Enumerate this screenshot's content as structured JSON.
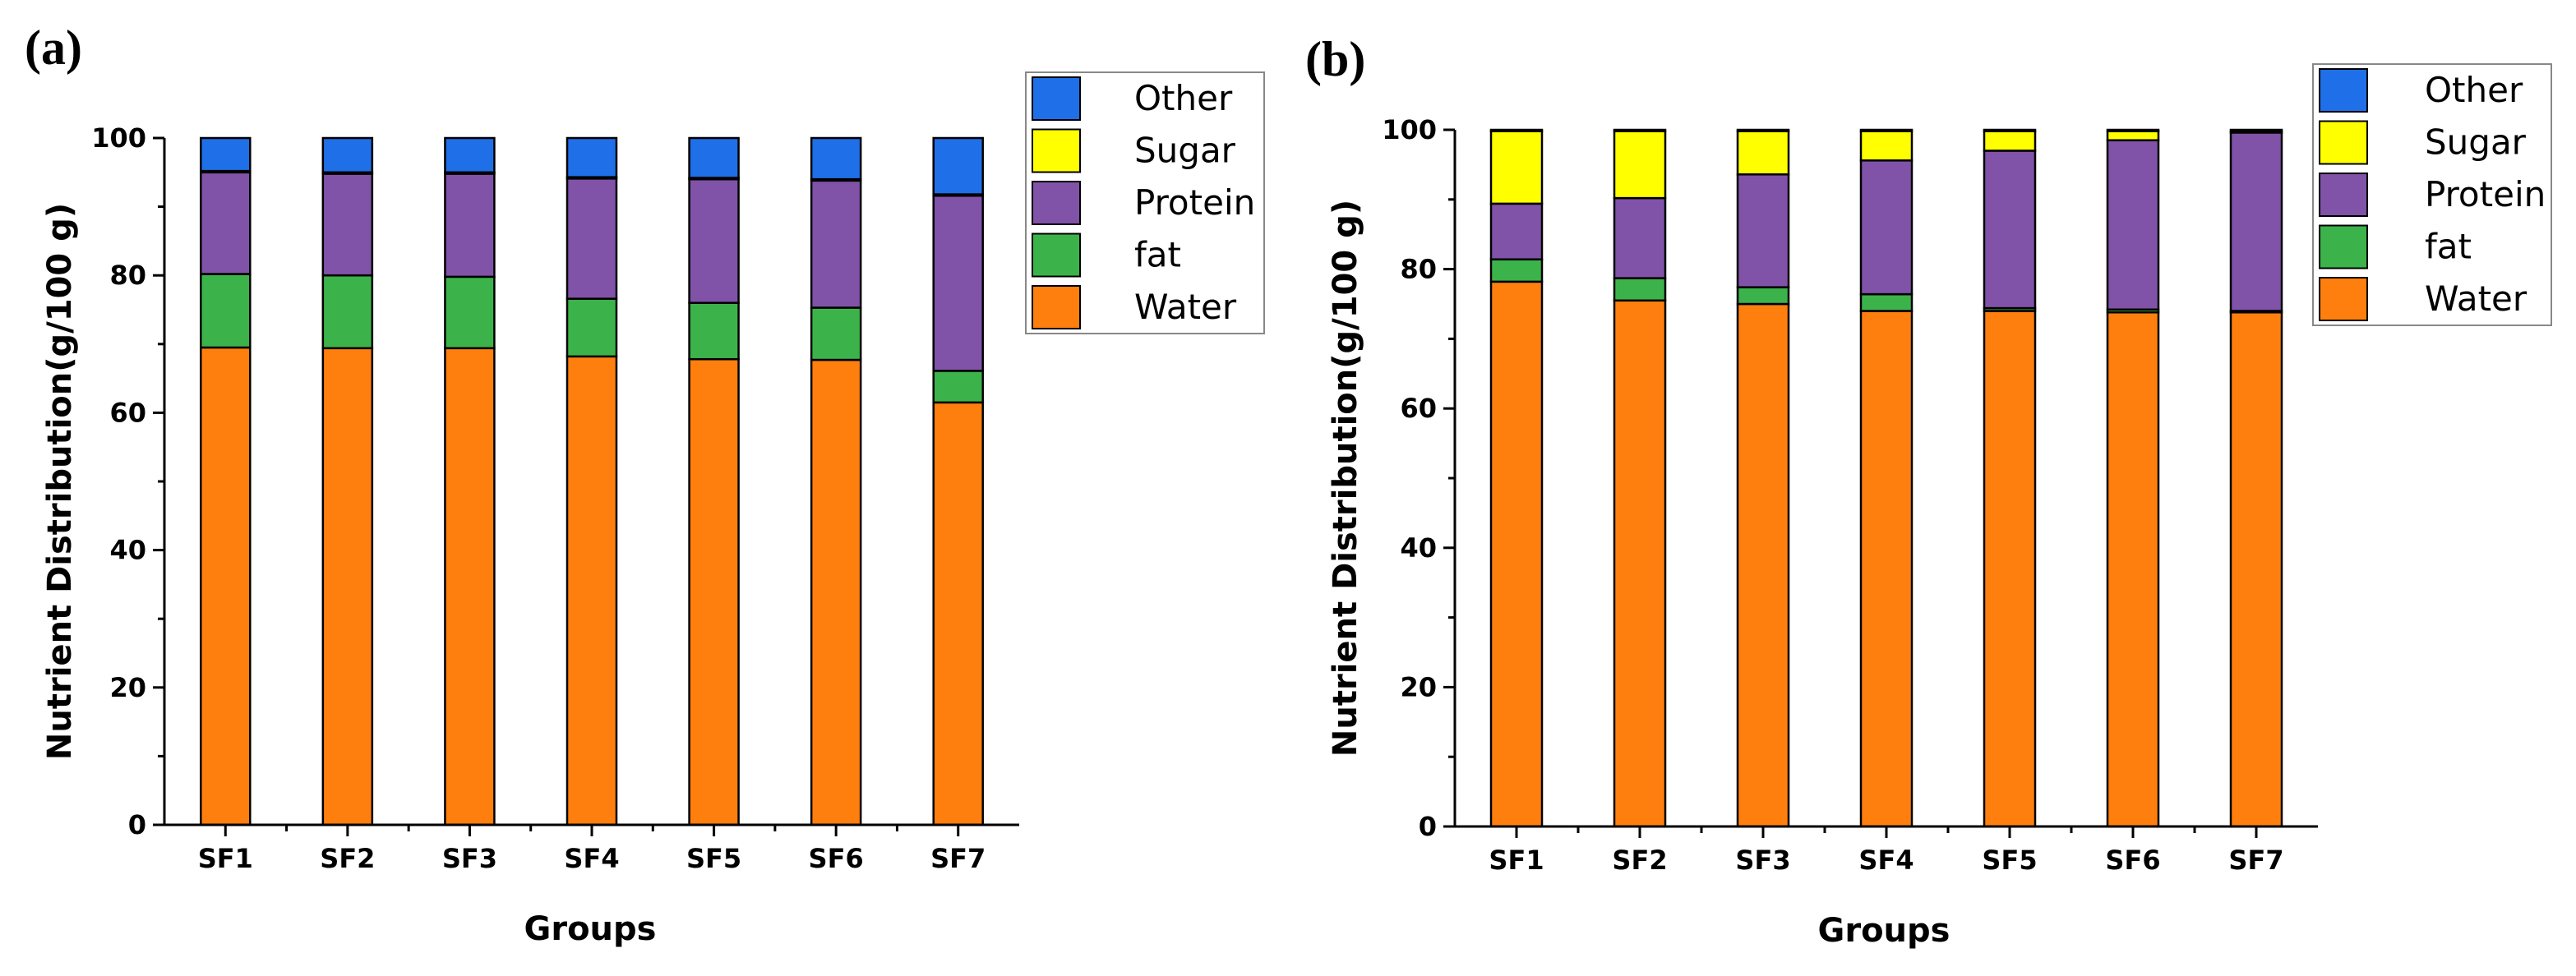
{
  "colors": {
    "Water": "#FF7F0E",
    "fat": "#3CB34A",
    "Protein": "#8052A8",
    "Sugar": "#FFFF00",
    "Other": "#1F6FE8"
  },
  "chart_data": [
    {
      "type": "bar",
      "stacked": true,
      "panel_label": "(a)",
      "title": "",
      "xlabel": "Groups",
      "ylabel": "Nutrient Distribution(g/100 g)",
      "ylim": [
        0,
        100
      ],
      "yticks": [
        0,
        20,
        40,
        60,
        80,
        100
      ],
      "legend_position": "top-right",
      "legend_order": [
        "Other",
        "Sugar",
        "Protein",
        "fat",
        "Water"
      ],
      "categories": [
        "SF1",
        "SF2",
        "SF3",
        "SF4",
        "SF5",
        "SF6",
        "SF7"
      ],
      "series": [
        {
          "name": "Water",
          "values": [
            69.5,
            69.4,
            69.4,
            68.2,
            67.8,
            67.7,
            61.5
          ]
        },
        {
          "name": "fat",
          "values": [
            10.7,
            10.6,
            10.4,
            8.4,
            8.2,
            7.6,
            4.6
          ]
        },
        {
          "name": "Protein",
          "values": [
            14.8,
            14.8,
            15.0,
            17.5,
            18.0,
            18.5,
            25.5
          ]
        },
        {
          "name": "Sugar",
          "values": [
            0.2,
            0.2,
            0.2,
            0.2,
            0.2,
            0.2,
            0.2
          ]
        },
        {
          "name": "Other",
          "values": [
            4.8,
            5.0,
            5.0,
            5.7,
            5.8,
            6.0,
            8.2
          ]
        }
      ]
    },
    {
      "type": "bar",
      "stacked": true,
      "panel_label": "(b)",
      "title": "",
      "xlabel": "Groups",
      "ylabel": "Nutrient Distribution(g/100 g)",
      "ylim": [
        0,
        100
      ],
      "yticks": [
        0,
        20,
        40,
        60,
        80,
        100
      ],
      "legend_position": "top-right",
      "legend_order": [
        "Other",
        "Sugar",
        "Protein",
        "fat",
        "Water"
      ],
      "categories": [
        "SF1",
        "SF2",
        "SF3",
        "SF4",
        "SF5",
        "SF6",
        "SF7"
      ],
      "series": [
        {
          "name": "Water",
          "values": [
            78.2,
            75.5,
            75.0,
            74.0,
            74.0,
            73.8,
            73.8
          ]
        },
        {
          "name": "fat",
          "values": [
            3.2,
            3.2,
            2.4,
            2.4,
            0.4,
            0.4,
            0.2
          ]
        },
        {
          "name": "Protein",
          "values": [
            8.0,
            11.5,
            16.2,
            19.2,
            22.6,
            24.3,
            25.6
          ]
        },
        {
          "name": "Sugar",
          "values": [
            10.4,
            9.6,
            6.2,
            4.2,
            2.8,
            1.3,
            0.2
          ]
        },
        {
          "name": "Other",
          "values": [
            0.2,
            0.2,
            0.2,
            0.2,
            0.2,
            0.2,
            0.2
          ]
        }
      ]
    }
  ]
}
